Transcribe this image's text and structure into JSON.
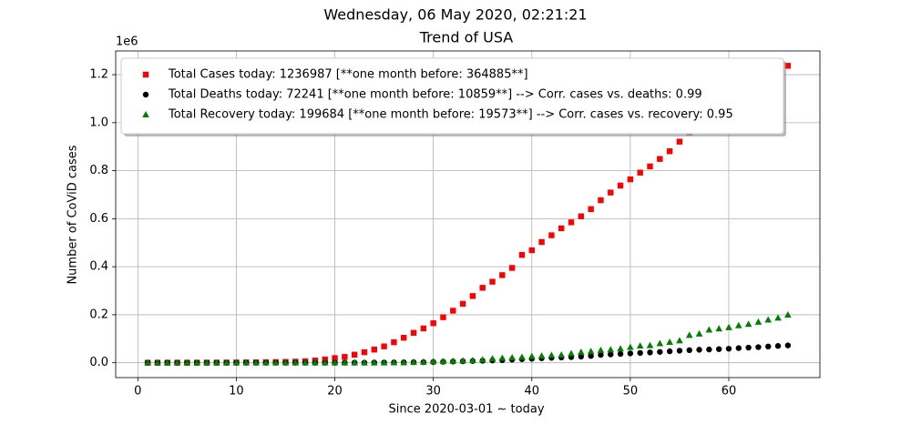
{
  "chart_data": {
    "type": "scatter",
    "title": "Wednesday, 06 May 2020, 02:21:21",
    "subtitle": "Trend of USA",
    "x_label": "Since 2020-03-01 ~ today",
    "y_label": "Number of CoViD cases",
    "y_offset_label": "1e6",
    "xlim": [
      -2.25,
      69.25
    ],
    "ylim": [
      -61849,
      1298836
    ],
    "xticks": [
      0,
      10,
      20,
      30,
      40,
      50,
      60
    ],
    "yticks": [
      {
        "value": 0,
        "label": "0.0"
      },
      {
        "value": 200000,
        "label": "0.2"
      },
      {
        "value": 400000,
        "label": "0.4"
      },
      {
        "value": 600000,
        "label": "0.6"
      },
      {
        "value": 800000,
        "label": "0.8"
      },
      {
        "value": 1000000,
        "label": "1.0"
      },
      {
        "value": 1200000,
        "label": "1.2"
      }
    ],
    "grid": true,
    "legend": "upper left",
    "x": [
      1,
      2,
      3,
      4,
      5,
      6,
      7,
      8,
      9,
      10,
      11,
      12,
      13,
      14,
      15,
      16,
      17,
      18,
      19,
      20,
      21,
      22,
      23,
      24,
      25,
      26,
      27,
      28,
      29,
      30,
      31,
      32,
      33,
      34,
      35,
      36,
      37,
      38,
      39,
      40,
      41,
      42,
      43,
      44,
      45,
      46,
      47,
      48,
      49,
      50,
      51,
      52,
      53,
      54,
      55,
      56,
      57,
      58,
      59,
      60,
      61,
      62,
      63,
      64,
      65,
      66
    ],
    "series": [
      {
        "name": "Total Cases today: 1236987 [**one month before: 364885**]",
        "color": "#ff0000",
        "marker": "square",
        "values": [
          75,
          100,
          124,
          158,
          221,
          319,
          435,
          541,
          704,
          994,
          1301,
          1630,
          2183,
          2770,
          3613,
          4596,
          6344,
          9197,
          13779,
          19367,
          24192,
          33592,
          43781,
          54856,
          68211,
          85435,
          104126,
          124686,
          143055,
          164620,
          189618,
          216721,
          245540,
          277965,
          312237,
          337635,
          364885,
          395030,
          448977,
          468566,
          502876,
          531000,
          560000,
          585000,
          610000,
          640000,
          677000,
          709000,
          738000,
          764000,
          792000,
          818000,
          849000,
          881000,
          921000,
          960000,
          988000,
          1012000,
          1040000,
          1070000,
          1100000,
          1131000,
          1160000,
          1193000,
          1215000,
          1236987
        ]
      },
      {
        "name": "Total Deaths today: 72241 [**one month before: 10859**] --> Corr. cases vs. deaths: 0.99",
        "color": "#000000",
        "marker": "circle",
        "values": [
          1,
          6,
          9,
          11,
          12,
          15,
          19,
          22,
          26,
          30,
          38,
          41,
          49,
          58,
          68,
          86,
          109,
          150,
          206,
          255,
          301,
          414,
          552,
          780,
          1027,
          1295,
          1696,
          2221,
          2487,
          3170,
          4076,
          5118,
          6095,
          7403,
          8503,
          9647,
          10859,
          12895,
          14817,
          16686,
          18747,
          20580,
          22115,
          23650,
          25837,
          28394,
          32916,
          34844,
          36773,
          38910,
          40901,
          42853,
          45063,
          47750,
          50243,
          52430,
          54265,
          55357,
          56803,
          58355,
          60966,
          63006,
          65068,
          67682,
          69925,
          72241
        ]
      },
      {
        "name": "Total Recovery today: 199684 [**one month before: 19573**] --> Corr. cases vs. recovery: 0.95",
        "color": "#008000",
        "marker": "triangle",
        "values": [
          7,
          7,
          7,
          7,
          8,
          8,
          8,
          8,
          8,
          8,
          8,
          12,
          12,
          12,
          17,
          17,
          106,
          106,
          108,
          147,
          171,
          178,
          348,
          361,
          394,
          681,
          869,
          2661,
          3054,
          5210,
          5921,
          7240,
          8861,
          10049,
          13193,
          17448,
          19573,
          21763,
          23559,
          26522,
          28790,
          31270,
          32988,
          38820,
          44308,
          47763,
          52096,
          54703,
          58545,
          64840,
          70337,
          72329,
          80203,
          85922,
          92000,
          115000,
          120720,
          137000,
          142000,
          147000,
          155000,
          161000,
          170000,
          179000,
          187000,
          199684
        ]
      }
    ]
  }
}
